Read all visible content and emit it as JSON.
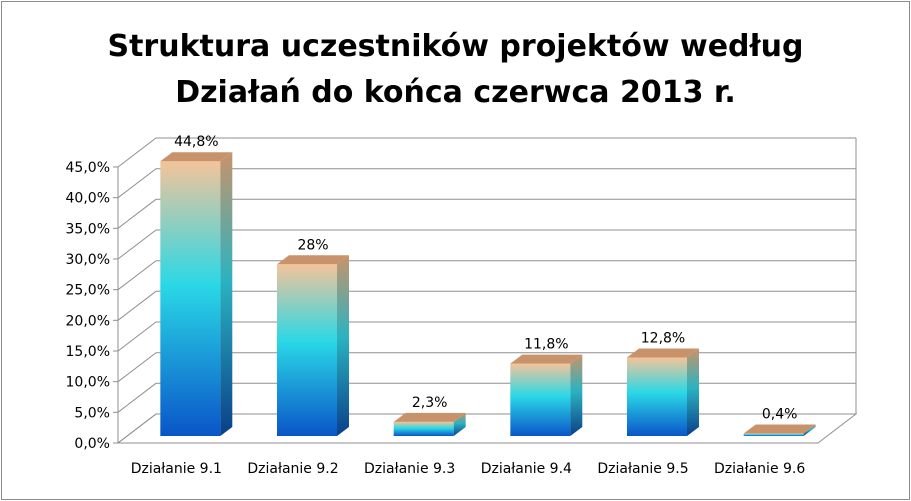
{
  "chart_data": {
    "type": "bar",
    "style": "3d-column",
    "title_lines": [
      "Struktura uczestników projektów według",
      "Działań do końca czerwca 2013 r."
    ],
    "categories": [
      "Działanie 9.1",
      "Działanie 9.2",
      "Działanie 9.3",
      "Działanie 9.4",
      "Działanie 9.5",
      "Działanie 9.6"
    ],
    "values": [
      44.8,
      28,
      2.3,
      11.8,
      12.8,
      0.4
    ],
    "data_labels": [
      "44,8%",
      "28%",
      "2,3%",
      "11,8%",
      "12,8%",
      "0,4%"
    ],
    "y_ticks": [
      0,
      5,
      10,
      15,
      20,
      25,
      30,
      35,
      40,
      45
    ],
    "y_tick_labels": [
      "0,0%",
      "5,0%",
      "10,0%",
      "15,0%",
      "20,0%",
      "25,0%",
      "30,0%",
      "35,0%",
      "40,0%",
      "45,0%"
    ],
    "ylim": [
      0,
      45
    ],
    "grid": true,
    "legend": "none",
    "xlabel": "",
    "ylabel": "",
    "colors": {
      "bar_bottom": "#0a55c8",
      "bar_mid": "#2ad8e6",
      "bar_top": "#f4c49a",
      "bar_side_dark": "#0a3f8a",
      "bar_side_light": "#2bb3c0",
      "bar_cap": "#c8936a",
      "wall": "#ffffff",
      "grid": "#8f8f8f",
      "floor": "#ffffff"
    }
  }
}
